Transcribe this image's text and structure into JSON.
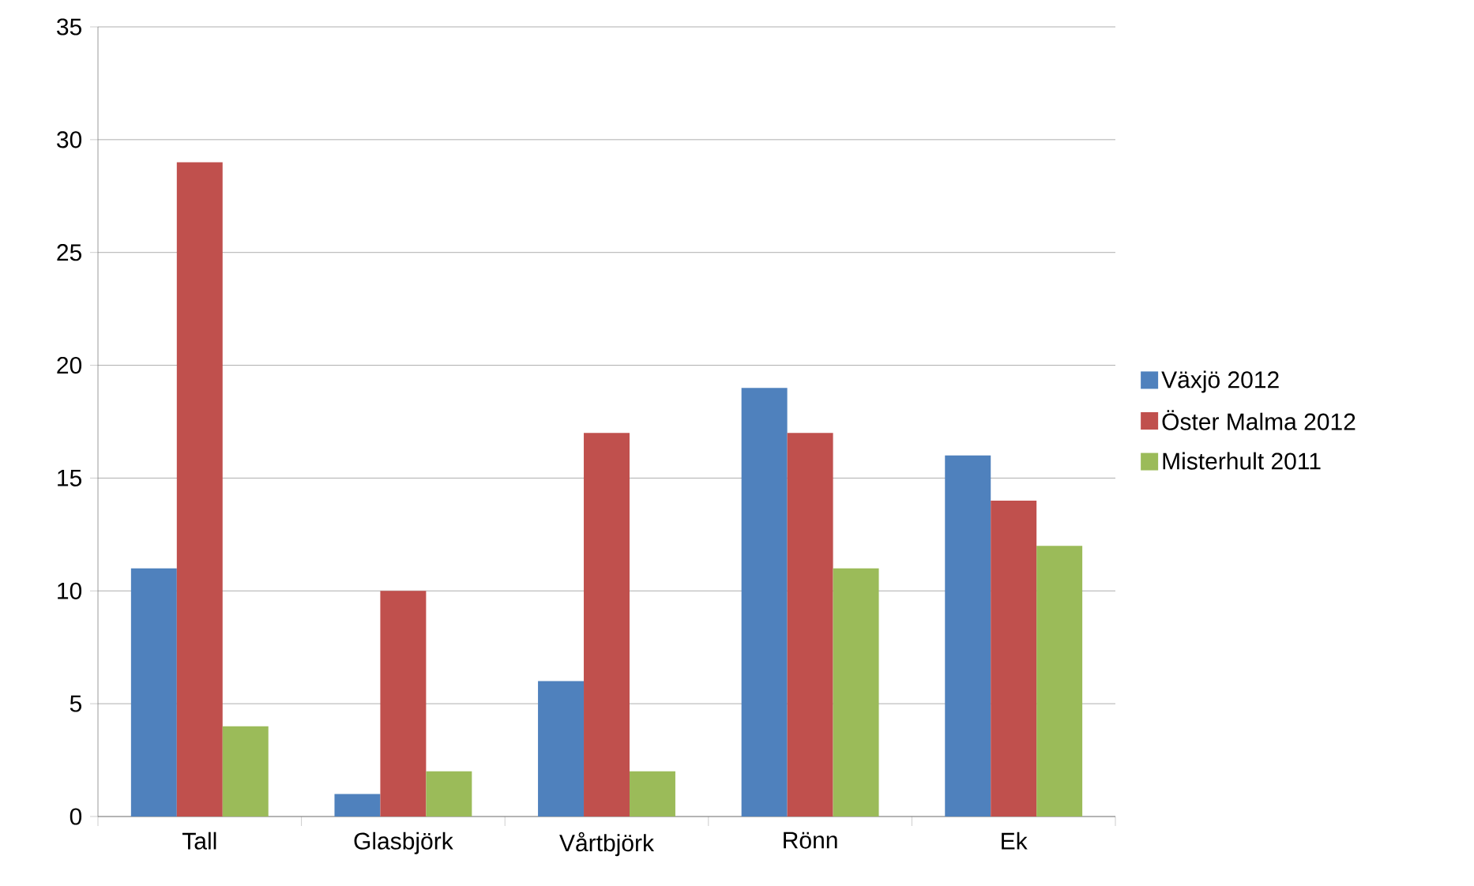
{
  "chart_data": {
    "type": "bar",
    "categories": [
      "Tall",
      "Glasbjörk",
      "Vårtbjörk",
      "Rönn",
      "Ek"
    ],
    "series": [
      {
        "name": "Växjö 2012",
        "color": "#4f81bd",
        "values": [
          11,
          1,
          6,
          19,
          16
        ]
      },
      {
        "name": "Öster Malma 2012",
        "color": "#c0504d",
        "values": [
          29,
          10,
          17,
          17,
          14
        ]
      },
      {
        "name": "Misterhult 2011",
        "color": "#9bbb59",
        "values": [
          4,
          2,
          2,
          11,
          12
        ]
      }
    ],
    "ylim": [
      0,
      35
    ],
    "yticks": [
      0,
      5,
      10,
      15,
      20,
      25,
      30,
      35
    ],
    "grid": "y",
    "legend": "right"
  }
}
